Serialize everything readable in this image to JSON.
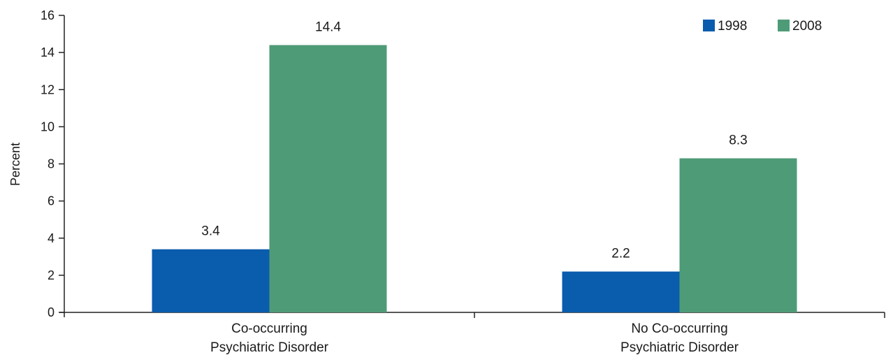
{
  "chart_data": {
    "type": "bar",
    "title": "",
    "xlabel": "",
    "ylabel": "Percent",
    "ylim": [
      0,
      16
    ],
    "yticks": [
      0,
      2,
      4,
      6,
      8,
      10,
      12,
      14,
      16
    ],
    "grid": false,
    "legend_position": "top-right",
    "categories": [
      [
        "Co-occurring",
        "Psychiatric Disorder"
      ],
      [
        "No Co-occurring",
        "Psychiatric Disorder"
      ]
    ],
    "series": [
      {
        "name": "1998",
        "color": "#0a5cad",
        "values": [
          3.4,
          2.2
        ],
        "labels": [
          "3.4",
          "2.2"
        ]
      },
      {
        "name": "2008",
        "color": "#4e9b78",
        "values": [
          14.4,
          8.3
        ],
        "labels": [
          "14.4",
          "8.3"
        ]
      }
    ]
  }
}
